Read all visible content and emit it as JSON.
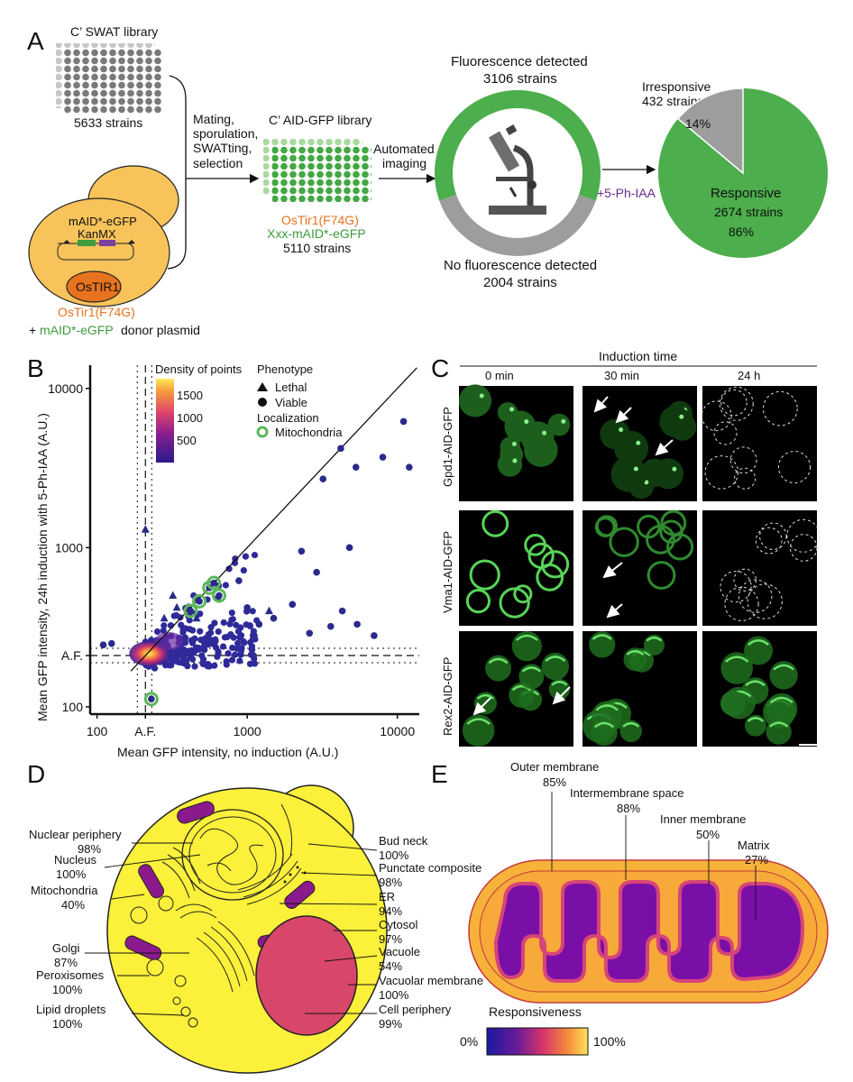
{
  "panels": {
    "A": "A",
    "B": "B",
    "C": "C",
    "D": "D",
    "E": "E"
  },
  "panel_a": {
    "swat_title": "C’ SWAT library",
    "swat_count": "5633 strains",
    "mating_lines": [
      "Mating,",
      "sporulation,",
      "SWATting,",
      "selection"
    ],
    "aid_title": "C’ AID-GFP library",
    "aid_tir": "OsTir1(F74G)",
    "aid_fusion": "Xxx-mAID*-eGFP",
    "aid_count": "5110 strains",
    "yeast_cassette1": "mAID*-eGFP",
    "yeast_cassette2": "KanMX",
    "yeast_nucleus": "OsTIR1",
    "yeast_label": "OsTir1(F74G)",
    "donor_plus": "+",
    "donor_green": "mAID*-eGFP",
    "donor_rest": "donor plasmid",
    "imaging_lines": [
      "Automated",
      "imaging"
    ],
    "fluor_detected": "Fluorescence detected",
    "fluor_count": "3106 strains",
    "no_fluor": "No fluorescence detected",
    "no_fluor_count": "2004 strains",
    "treatment": "+5-Ph-IAA",
    "irresponsive": "Irresponsive",
    "irresponsive_count": "432 strains",
    "irresponsive_pct": "14%",
    "responsive": "Responsive",
    "responsive_count": "2674 strains",
    "responsive_pct": "86%"
  },
  "chart_data": [
    {
      "type": "scatter",
      "panel": "B",
      "xlabel": "Mean GFP intensity, no induction (A.U.)",
      "ylabel": "Mean GFP intensity, 24h induction with 5-Ph-IAA (A.U.)",
      "scale": "log",
      "xlim": [
        90,
        14000
      ],
      "ylim": [
        90,
        14000
      ],
      "x_ticks": [
        "100",
        "A.F.",
        "1000",
        "10000"
      ],
      "y_ticks": [
        "100",
        "A.F.",
        "1000",
        "10000"
      ],
      "af_value": 210,
      "density_legend": {
        "title": "Density of points",
        "ticks": [
          "1500",
          "1000",
          "500"
        ]
      },
      "phenotype_legend": {
        "title": "Phenotype",
        "items": [
          "Lethal",
          "Viable"
        ]
      },
      "localization_legend": {
        "title": "Localization",
        "items": [
          "Mitochondria"
        ]
      },
      "outliers": [
        {
          "x": 110,
          "y": 245,
          "shape": "viable",
          "mito": false
        },
        {
          "x": 125,
          "y": 250,
          "shape": "viable",
          "mito": false
        },
        {
          "x": 230,
          "y": 112,
          "shape": "viable",
          "mito": true
        },
        {
          "x": 210,
          "y": 1300,
          "shape": "lethal",
          "mito": false
        },
        {
          "x": 420,
          "y": 400,
          "shape": "viable",
          "mito": true
        },
        {
          "x": 480,
          "y": 460,
          "shape": "viable",
          "mito": true
        },
        {
          "x": 560,
          "y": 560,
          "shape": "viable",
          "mito": true
        },
        {
          "x": 600,
          "y": 600,
          "shape": "viable",
          "mito": true
        },
        {
          "x": 650,
          "y": 500,
          "shape": "viable",
          "mito": true
        },
        {
          "x": 340,
          "y": 420,
          "shape": "lethal",
          "mito": false
        },
        {
          "x": 280,
          "y": 360,
          "shape": "lethal",
          "mito": false
        },
        {
          "x": 320,
          "y": 500,
          "shape": "lethal",
          "mito": false
        },
        {
          "x": 460,
          "y": 360,
          "shape": "lethal",
          "mito": false
        },
        {
          "x": 880,
          "y": 620,
          "shape": "viable",
          "mito": false
        },
        {
          "x": 1000,
          "y": 420,
          "shape": "viable",
          "mito": false
        },
        {
          "x": 1200,
          "y": 330,
          "shape": "viable",
          "mito": false
        },
        {
          "x": 1500,
          "y": 360,
          "shape": "viable",
          "mito": false
        },
        {
          "x": 1400,
          "y": 400,
          "shape": "lethal",
          "mito": false
        },
        {
          "x": 2000,
          "y": 440,
          "shape": "viable",
          "mito": false
        },
        {
          "x": 2300,
          "y": 950,
          "shape": "viable",
          "mito": false
        },
        {
          "x": 2900,
          "y": 700,
          "shape": "viable",
          "mito": false
        },
        {
          "x": 3200,
          "y": 2700,
          "shape": "viable",
          "mito": false
        },
        {
          "x": 4200,
          "y": 4200,
          "shape": "viable",
          "mito": false
        },
        {
          "x": 4800,
          "y": 1000,
          "shape": "viable",
          "mito": false
        },
        {
          "x": 5300,
          "y": 3200,
          "shape": "viable",
          "mito": false
        },
        {
          "x": 3600,
          "y": 320,
          "shape": "viable",
          "mito": false
        },
        {
          "x": 4300,
          "y": 400,
          "shape": "viable",
          "mito": false
        },
        {
          "x": 5400,
          "y": 330,
          "shape": "viable",
          "mito": false
        },
        {
          "x": 2600,
          "y": 290,
          "shape": "viable",
          "mito": false
        },
        {
          "x": 8000,
          "y": 3700,
          "shape": "viable",
          "mito": false
        },
        {
          "x": 11000,
          "y": 6200,
          "shape": "viable",
          "mito": false
        },
        {
          "x": 12000,
          "y": 3200,
          "shape": "viable",
          "mito": false
        },
        {
          "x": 7000,
          "y": 280,
          "shape": "viable",
          "mito": false
        }
      ]
    },
    {
      "type": "pie",
      "panel": "A",
      "labels": [
        "Responsive",
        "Irresponsive"
      ],
      "values": [
        2674,
        432
      ],
      "percent": [
        86,
        14
      ]
    },
    {
      "type": "donut",
      "panel": "A",
      "labels": [
        "Fluorescence detected",
        "No fluorescence detected"
      ],
      "values": [
        3106,
        2004
      ]
    }
  ],
  "panel_c": {
    "header": "Induction time",
    "times": [
      "0 min",
      "30 min",
      "24 h"
    ],
    "rows": [
      "Gpd1-AID-GFP",
      "Vma1-AID-GFP",
      "Rex2-AID-GFP"
    ]
  },
  "panel_d": {
    "left_labels": [
      {
        "name": "Nuclear periphery",
        "pct": "98%"
      },
      {
        "name": "Nucleus",
        "pct": "100%"
      },
      {
        "name": "Mitochondria",
        "pct": "40%"
      },
      {
        "name": "Golgi",
        "pct": "87%"
      },
      {
        "name": "Peroxisomes",
        "pct": "100%"
      },
      {
        "name": "Lipid droplets",
        "pct": "100%"
      }
    ],
    "right_labels": [
      {
        "name": "Bud neck",
        "pct": "100%"
      },
      {
        "name": "Punctate composite",
        "pct": "98%"
      },
      {
        "name": "ER",
        "pct": "94%"
      },
      {
        "name": "Cytosol",
        "pct": "97%"
      },
      {
        "name": "Vacuole",
        "pct": "54%"
      },
      {
        "name": "Vacuolar membrane",
        "pct": "100%"
      },
      {
        "name": "Cell periphery",
        "pct": "99%"
      }
    ]
  },
  "panel_e": {
    "labels": [
      {
        "name": "Outer membrane",
        "pct": "85%"
      },
      {
        "name": "Intermembrane space",
        "pct": "88%"
      },
      {
        "name": "Inner membrane",
        "pct": "50%"
      },
      {
        "name": "Matrix",
        "pct": "27%"
      }
    ],
    "legend_title": "Responsiveness",
    "legend_min": "0%",
    "legend_max": "100%"
  },
  "colors": {
    "green": "#4cae4c",
    "gray": "#9d9d9d",
    "orange": "#e8731f",
    "purple": "#6b2c91",
    "yeast": "#f7c35a",
    "navy": "#2a2a8c"
  }
}
